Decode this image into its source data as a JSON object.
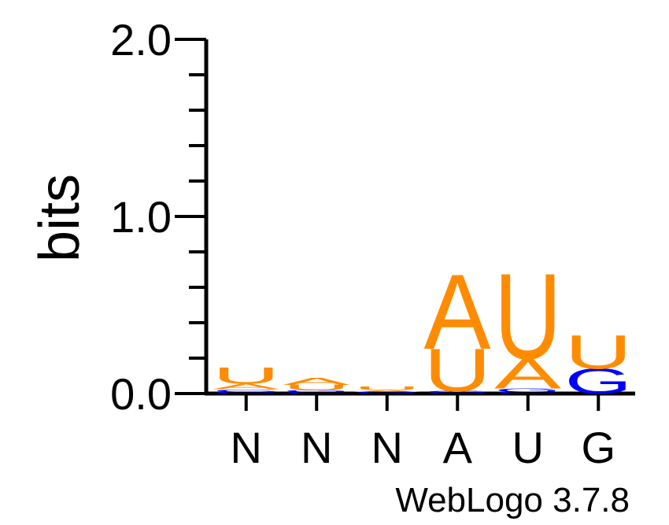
{
  "chart_data": {
    "type": "sequence-logo",
    "ylabel": "bits",
    "ylim": [
      0,
      2
    ],
    "yticks": [
      "0.0",
      "1.0",
      "2.0"
    ],
    "positions": [
      "N",
      "N",
      "N",
      "A",
      "U",
      "G"
    ],
    "colors": {
      "A": "#ff8c00",
      "U": "#ff8c00",
      "G": "#0000ff",
      "C": "#0000ff"
    },
    "stacks": [
      [
        {
          "letter": "G",
          "bits": 0.01
        },
        {
          "letter": "C",
          "bits": 0.015
        },
        {
          "letter": "A",
          "bits": 0.03
        },
        {
          "letter": "U",
          "bits": 0.09
        }
      ],
      [
        {
          "letter": "C",
          "bits": 0.01
        },
        {
          "letter": "G",
          "bits": 0.01
        },
        {
          "letter": "U",
          "bits": 0.03
        },
        {
          "letter": "A",
          "bits": 0.04
        }
      ],
      [
        {
          "letter": "C",
          "bits": 0.005
        },
        {
          "letter": "G",
          "bits": 0.005
        },
        {
          "letter": "A",
          "bits": 0.01
        },
        {
          "letter": "U",
          "bits": 0.02
        }
      ],
      [
        {
          "letter": "C",
          "bits": 0.005
        },
        {
          "letter": "G",
          "bits": 0.01
        },
        {
          "letter": "U",
          "bits": 0.24
        },
        {
          "letter": "A",
          "bits": 0.42
        }
      ],
      [
        {
          "letter": "C",
          "bits": 0.01
        },
        {
          "letter": "G",
          "bits": 0.02
        },
        {
          "letter": "A",
          "bits": 0.17
        },
        {
          "letter": "U",
          "bits": 0.48
        }
      ],
      [
        {
          "letter": "G",
          "bits": 0.14
        },
        {
          "letter": "U",
          "bits": 0.19
        }
      ]
    ]
  },
  "footer": "WebLogo 3.7.8"
}
